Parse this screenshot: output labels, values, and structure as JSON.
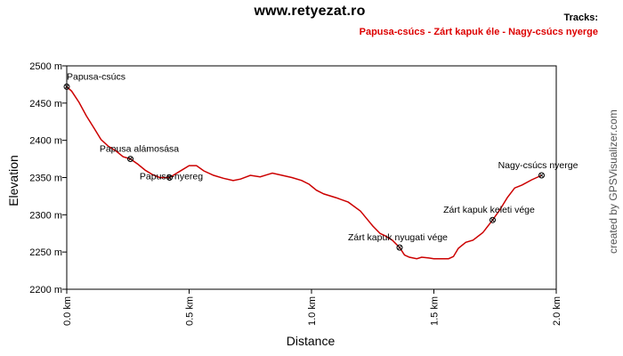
{
  "site_title": "www.retyezat.ro",
  "tracks_label": "Tracks:",
  "track_name": "Papusa-csúcs - Zárt kapuk éle - Nagy-csúcs nyerge",
  "credit": "created by GPSVisualizer.com",
  "colors": {
    "track": "#cc0000",
    "title": "#dd0000",
    "axis": "#000000",
    "grid": "#dddddd"
  },
  "chart_data": {
    "type": "line",
    "xlabel": "Distance",
    "ylabel": "Elevation",
    "xlim": [
      0,
      2.0
    ],
    "ylim": [
      2200,
      2500
    ],
    "x_unit": "km",
    "y_unit": "m",
    "x_ticks": [
      0,
      0.5,
      1.0,
      1.5,
      2.0
    ],
    "x_tick_labels": [
      "0.0 km",
      "0.5 km",
      "1.0 km",
      "1.5 km",
      "2.0 km"
    ],
    "y_ticks": [
      2200,
      2250,
      2300,
      2350,
      2400,
      2450,
      2500
    ],
    "y_tick_labels": [
      "2200 m",
      "2250 m",
      "2300 m",
      "2350 m",
      "2400 m",
      "2450 m",
      "2500 m"
    ],
    "grid": false,
    "series": [
      {
        "x": [
          0,
          0.02,
          0.05,
          0.08,
          0.11,
          0.14,
          0.17,
          0.2,
          0.23,
          0.26,
          0.29,
          0.32,
          0.35,
          0.38,
          0.42,
          0.46,
          0.5,
          0.53,
          0.56,
          0.6,
          0.64,
          0.68,
          0.71,
          0.75,
          0.79,
          0.82,
          0.84,
          0.88,
          0.92,
          0.96,
          0.99,
          1.02,
          1.05,
          1.1,
          1.15,
          1.2,
          1.22,
          1.25,
          1.28,
          1.3,
          1.33,
          1.36,
          1.38,
          1.4,
          1.43,
          1.45,
          1.48,
          1.5,
          1.53,
          1.56,
          1.58,
          1.6,
          1.63,
          1.66,
          1.7,
          1.74,
          1.77,
          1.8,
          1.83,
          1.86,
          1.9,
          1.94
        ],
        "y": [
          2472,
          2466,
          2451,
          2433,
          2417,
          2401,
          2392,
          2386,
          2378,
          2375,
          2368,
          2360,
          2354,
          2350,
          2350,
          2358,
          2366,
          2366,
          2359,
          2353,
          2349,
          2346,
          2348,
          2353,
          2351,
          2354,
          2356,
          2353,
          2350,
          2346,
          2341,
          2333,
          2328,
          2323,
          2317,
          2305,
          2297,
          2285,
          2275,
          2272,
          2266,
          2256,
          2246,
          2243,
          2241,
          2243,
          2242,
          2241,
          2241,
          2241,
          2244,
          2255,
          2263,
          2266,
          2276,
          2293,
          2307,
          2323,
          2336,
          2340,
          2347,
          2353
        ]
      }
    ],
    "waypoints": [
      {
        "label": "Papusa-csúcs",
        "x": 0.0,
        "y": 2472
      },
      {
        "label": "Papusa alámosása",
        "x": 0.26,
        "y": 2375
      },
      {
        "label": "Papusa-nyereg",
        "x": 0.42,
        "y": 2350
      },
      {
        "label": "Zárt kapuk nyugati vége",
        "x": 1.36,
        "y": 2256
      },
      {
        "label": "Zárt kapuk keleti vége",
        "x": 1.74,
        "y": 2293
      },
      {
        "label": "Nagy-csúcs nyerge",
        "x": 1.94,
        "y": 2353
      }
    ]
  }
}
